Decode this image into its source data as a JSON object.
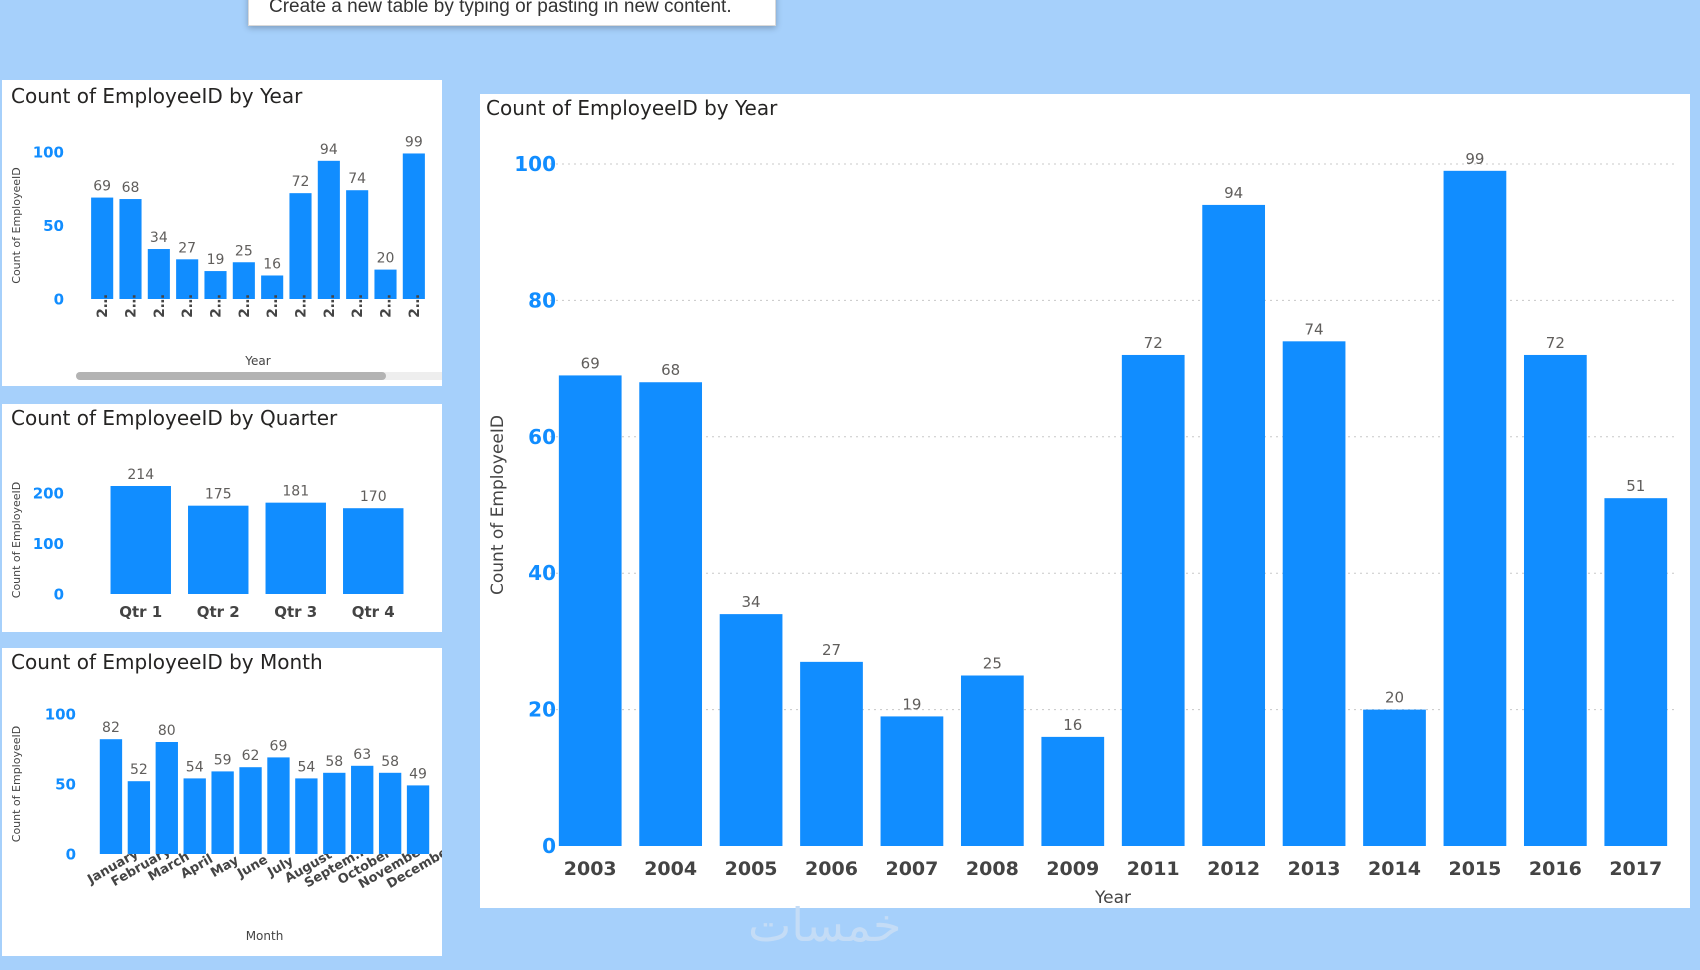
{
  "tooltip": {
    "text": "Create a new table by typing or pasting in new content."
  },
  "watermark": {
    "text": "خمسات"
  },
  "colors": {
    "bar": "#118dff",
    "background": "#a6d0fb",
    "axis_tick": "#118dff"
  },
  "chart_data": [
    {
      "id": "year_small",
      "type": "bar",
      "title": "Count of EmployeeID by Year",
      "xlabel": "Year",
      "ylabel": "Count of EmployeeID",
      "categories": [
        "2…",
        "2…",
        "2…",
        "2…",
        "2…",
        "2…",
        "2…",
        "2…",
        "2…",
        "2…",
        "2…",
        "2…"
      ],
      "values": [
        69,
        68,
        34,
        27,
        19,
        25,
        16,
        72,
        94,
        74,
        20,
        99
      ],
      "yticks": [
        0,
        50,
        100
      ],
      "ylim": [
        0,
        100
      ],
      "grid": false,
      "scrollbar": true
    },
    {
      "id": "quarter",
      "type": "bar",
      "title": "Count of EmployeeID by Quarter",
      "xlabel": "",
      "ylabel": "Count of EmployeeID",
      "categories": [
        "Qtr 1",
        "Qtr 2",
        "Qtr 3",
        "Qtr 4"
      ],
      "values": [
        214,
        175,
        181,
        170
      ],
      "yticks": [
        0,
        100,
        200
      ],
      "ylim": [
        0,
        214
      ],
      "grid": false
    },
    {
      "id": "month",
      "type": "bar",
      "title": "Count of EmployeeID by Month",
      "xlabel": "Month",
      "ylabel": "Count of EmployeeID",
      "categories": [
        "January",
        "February",
        "March",
        "April",
        "May",
        "June",
        "July",
        "August",
        "Septem...",
        "October",
        "November",
        "December"
      ],
      "values": [
        82,
        52,
        80,
        54,
        59,
        62,
        69,
        54,
        58,
        63,
        58,
        49
      ],
      "yticks": [
        0,
        50,
        100
      ],
      "ylim": [
        0,
        100
      ],
      "grid": false
    },
    {
      "id": "year_large",
      "type": "bar",
      "title": "Count of EmployeeID by Year",
      "xlabel": "Year",
      "ylabel": "Count of EmployeeID",
      "categories": [
        "2003",
        "2004",
        "2005",
        "2006",
        "2007",
        "2008",
        "2009",
        "2011",
        "2012",
        "2013",
        "2014",
        "2015",
        "2016",
        "2017"
      ],
      "values": [
        69,
        68,
        34,
        27,
        19,
        25,
        16,
        72,
        94,
        74,
        20,
        99,
        72,
        51
      ],
      "yticks": [
        0,
        20,
        40,
        60,
        80,
        100
      ],
      "ylim": [
        0,
        100
      ],
      "grid": true
    }
  ]
}
